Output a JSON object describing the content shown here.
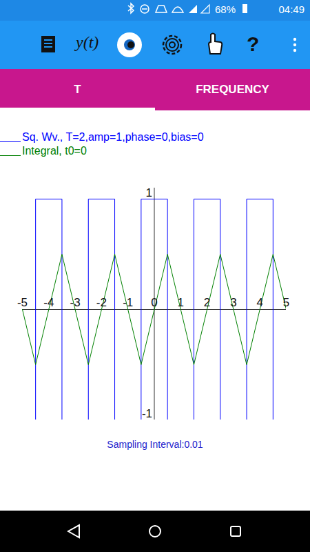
{
  "status_bar": {
    "battery": "68%",
    "time": "04:49"
  },
  "toolbar": {
    "texts": [
      "y(t)",
      "?"
    ]
  },
  "tabs": {
    "items": [
      "T",
      "FREQUENCY"
    ],
    "active": "T"
  },
  "chart_data": {
    "type": "line",
    "series": [
      {
        "name": "Sq. Wv., T=2,amp=1,phase=0,bias=0",
        "color": "#0000ff",
        "x": [
          -5,
          -4.5,
          -4.5,
          -3.5,
          -3.5,
          -2.5,
          -2.5,
          -1.5,
          -1.5,
          -0.5,
          -0.5,
          0.5,
          0.5,
          1.5,
          1.5,
          2.5,
          2.5,
          3.5,
          3.5,
          4.5,
          4.5,
          5
        ],
        "values": [
          -1,
          -1,
          1,
          1,
          -1,
          -1,
          1,
          1,
          -1,
          -1,
          1,
          1,
          -1,
          -1,
          1,
          1,
          -1,
          -1,
          1,
          1,
          -1,
          -1
        ]
      },
      {
        "name": "Integral, t0=0",
        "color": "#008000",
        "x": [
          -5,
          -4.5,
          -3.5,
          -2.5,
          -1.5,
          -0.5,
          0.5,
          1.5,
          2.5,
          3.5,
          4.5,
          5
        ],
        "values": [
          0,
          -0.5,
          0.5,
          -0.5,
          0.5,
          -0.5,
          0.5,
          -0.5,
          0.5,
          -0.5,
          0.5,
          0
        ]
      }
    ],
    "xlim": [
      -5,
      5
    ],
    "xticks": [
      -5,
      -4,
      -3,
      -2,
      -1,
      0,
      1,
      2,
      3,
      4,
      5
    ],
    "ylim": [
      -1,
      1.1
    ],
    "yticks": [
      -1,
      1
    ],
    "grid": false,
    "caption": "Sampling Interval:0.01"
  }
}
